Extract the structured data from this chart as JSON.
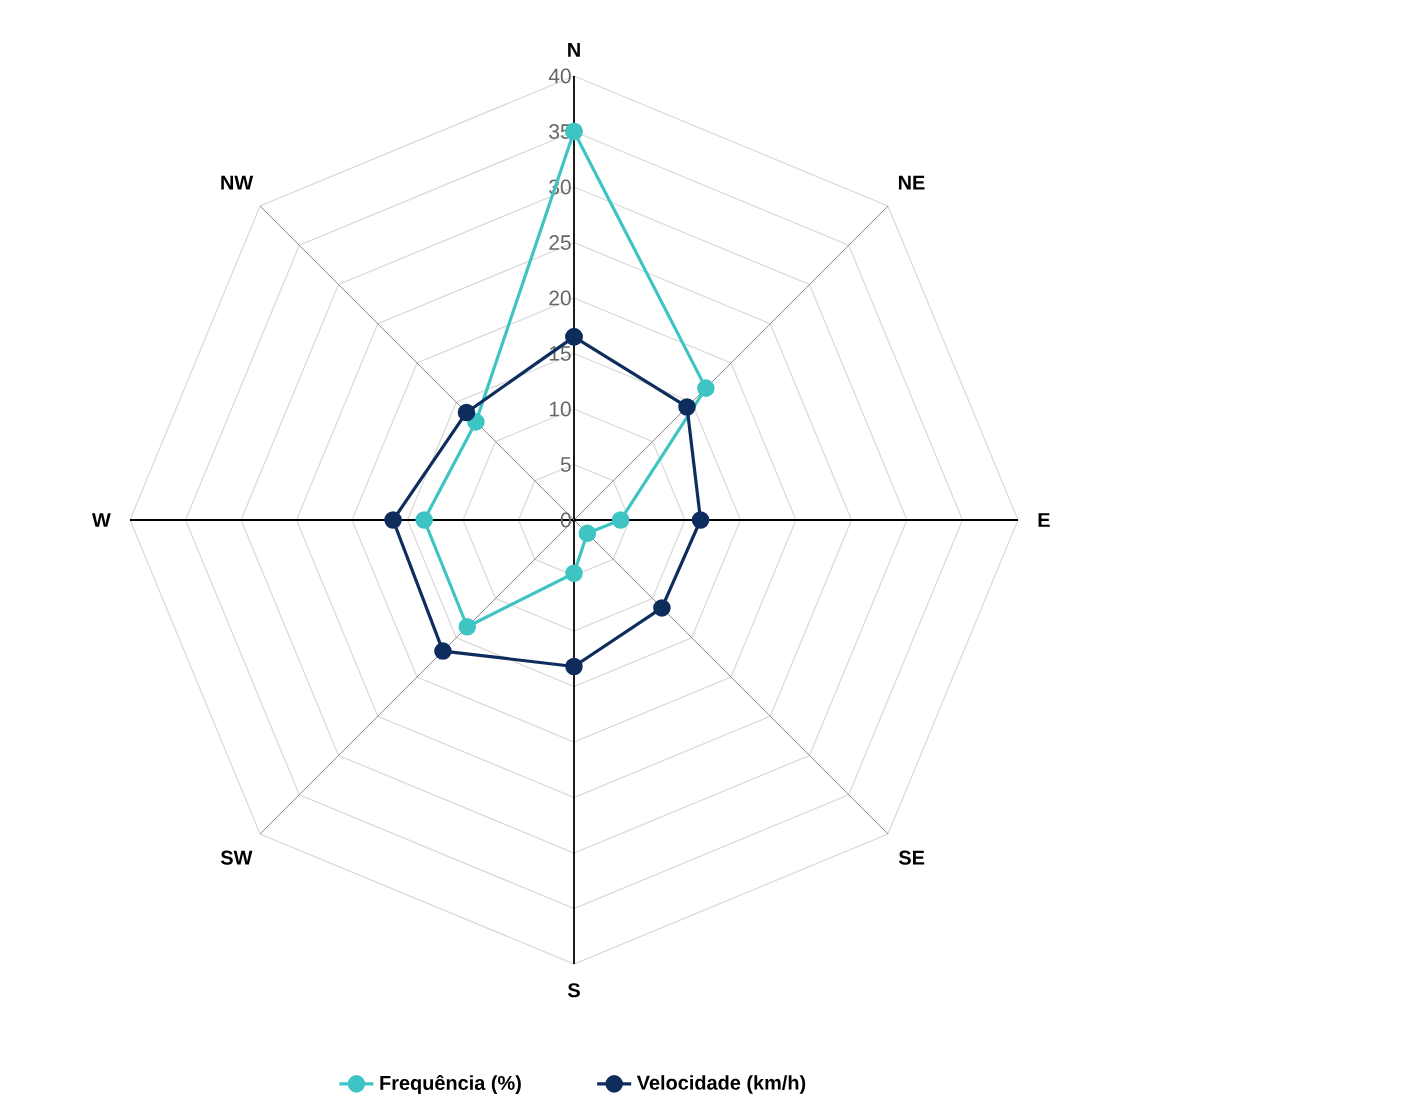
{
  "chart_data": {
    "type": "radar",
    "categories": [
      "N",
      "NE",
      "E",
      "SE",
      "S",
      "SW",
      "W",
      "NW"
    ],
    "series": [
      {
        "name": "Frequência (%)",
        "color": "#3fc4c4",
        "values": [
          35,
          16.8,
          4.2,
          1.7,
          4.8,
          13.6,
          13.5,
          12.5
        ]
      },
      {
        "name": "Velocidade (km/h)",
        "color": "#0e2d5c",
        "values": [
          16.5,
          14.4,
          11.4,
          11.2,
          13.2,
          16.7,
          16.3,
          13.7
        ]
      }
    ],
    "ylim": [
      0,
      40
    ],
    "yticks": [
      0,
      5,
      10,
      15,
      20,
      25,
      30,
      35,
      40
    ],
    "grid": true,
    "legend": "bottom",
    "marker": "circle",
    "line_style": "solid"
  }
}
